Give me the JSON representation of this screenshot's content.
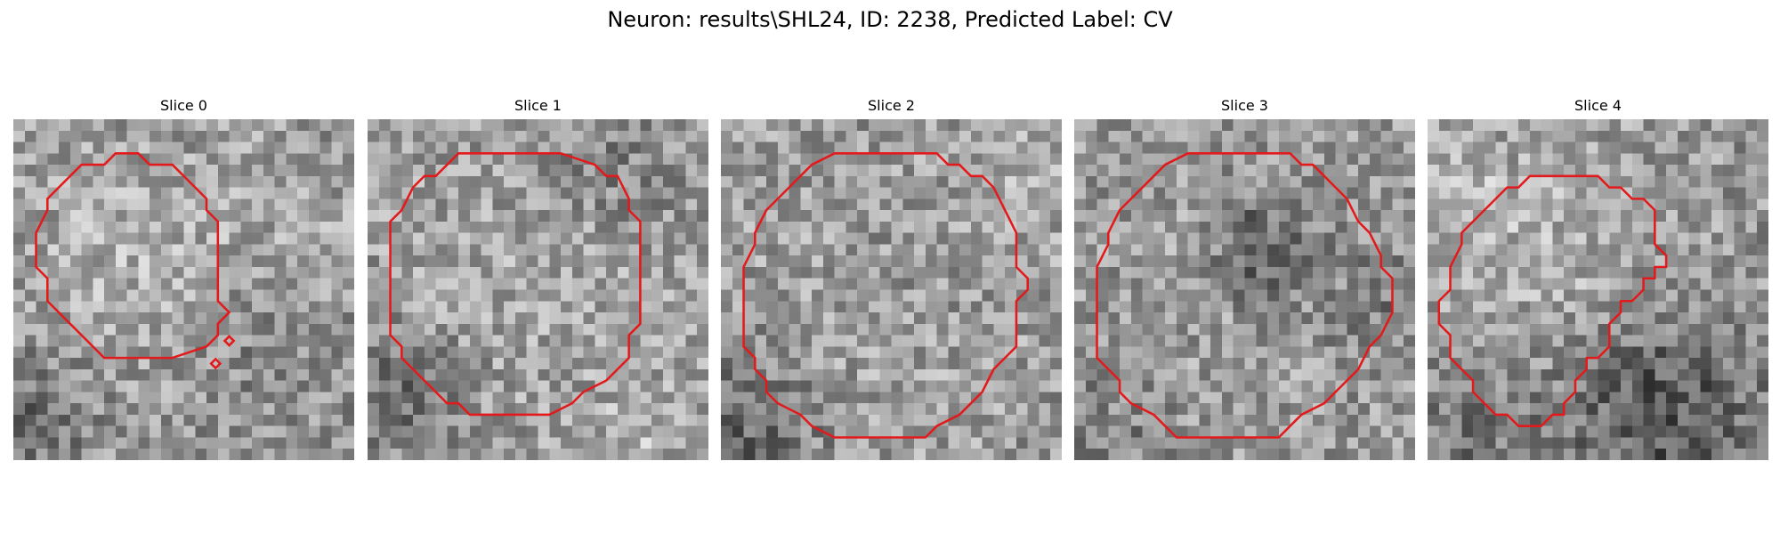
{
  "figure": {
    "title": "Neuron: results\\SHL24, ID: 2238, Predicted Label: CV"
  },
  "panels": [
    {
      "title": "Slice 0",
      "contour_color": "#e31a1c"
    },
    {
      "title": "Slice 1",
      "contour_color": "#e31a1c"
    },
    {
      "title": "Slice 2",
      "contour_color": "#e31a1c"
    },
    {
      "title": "Slice 3",
      "contour_color": "#e31a1c"
    },
    {
      "title": "Slice 4",
      "contour_color": "#e31a1c"
    }
  ]
}
